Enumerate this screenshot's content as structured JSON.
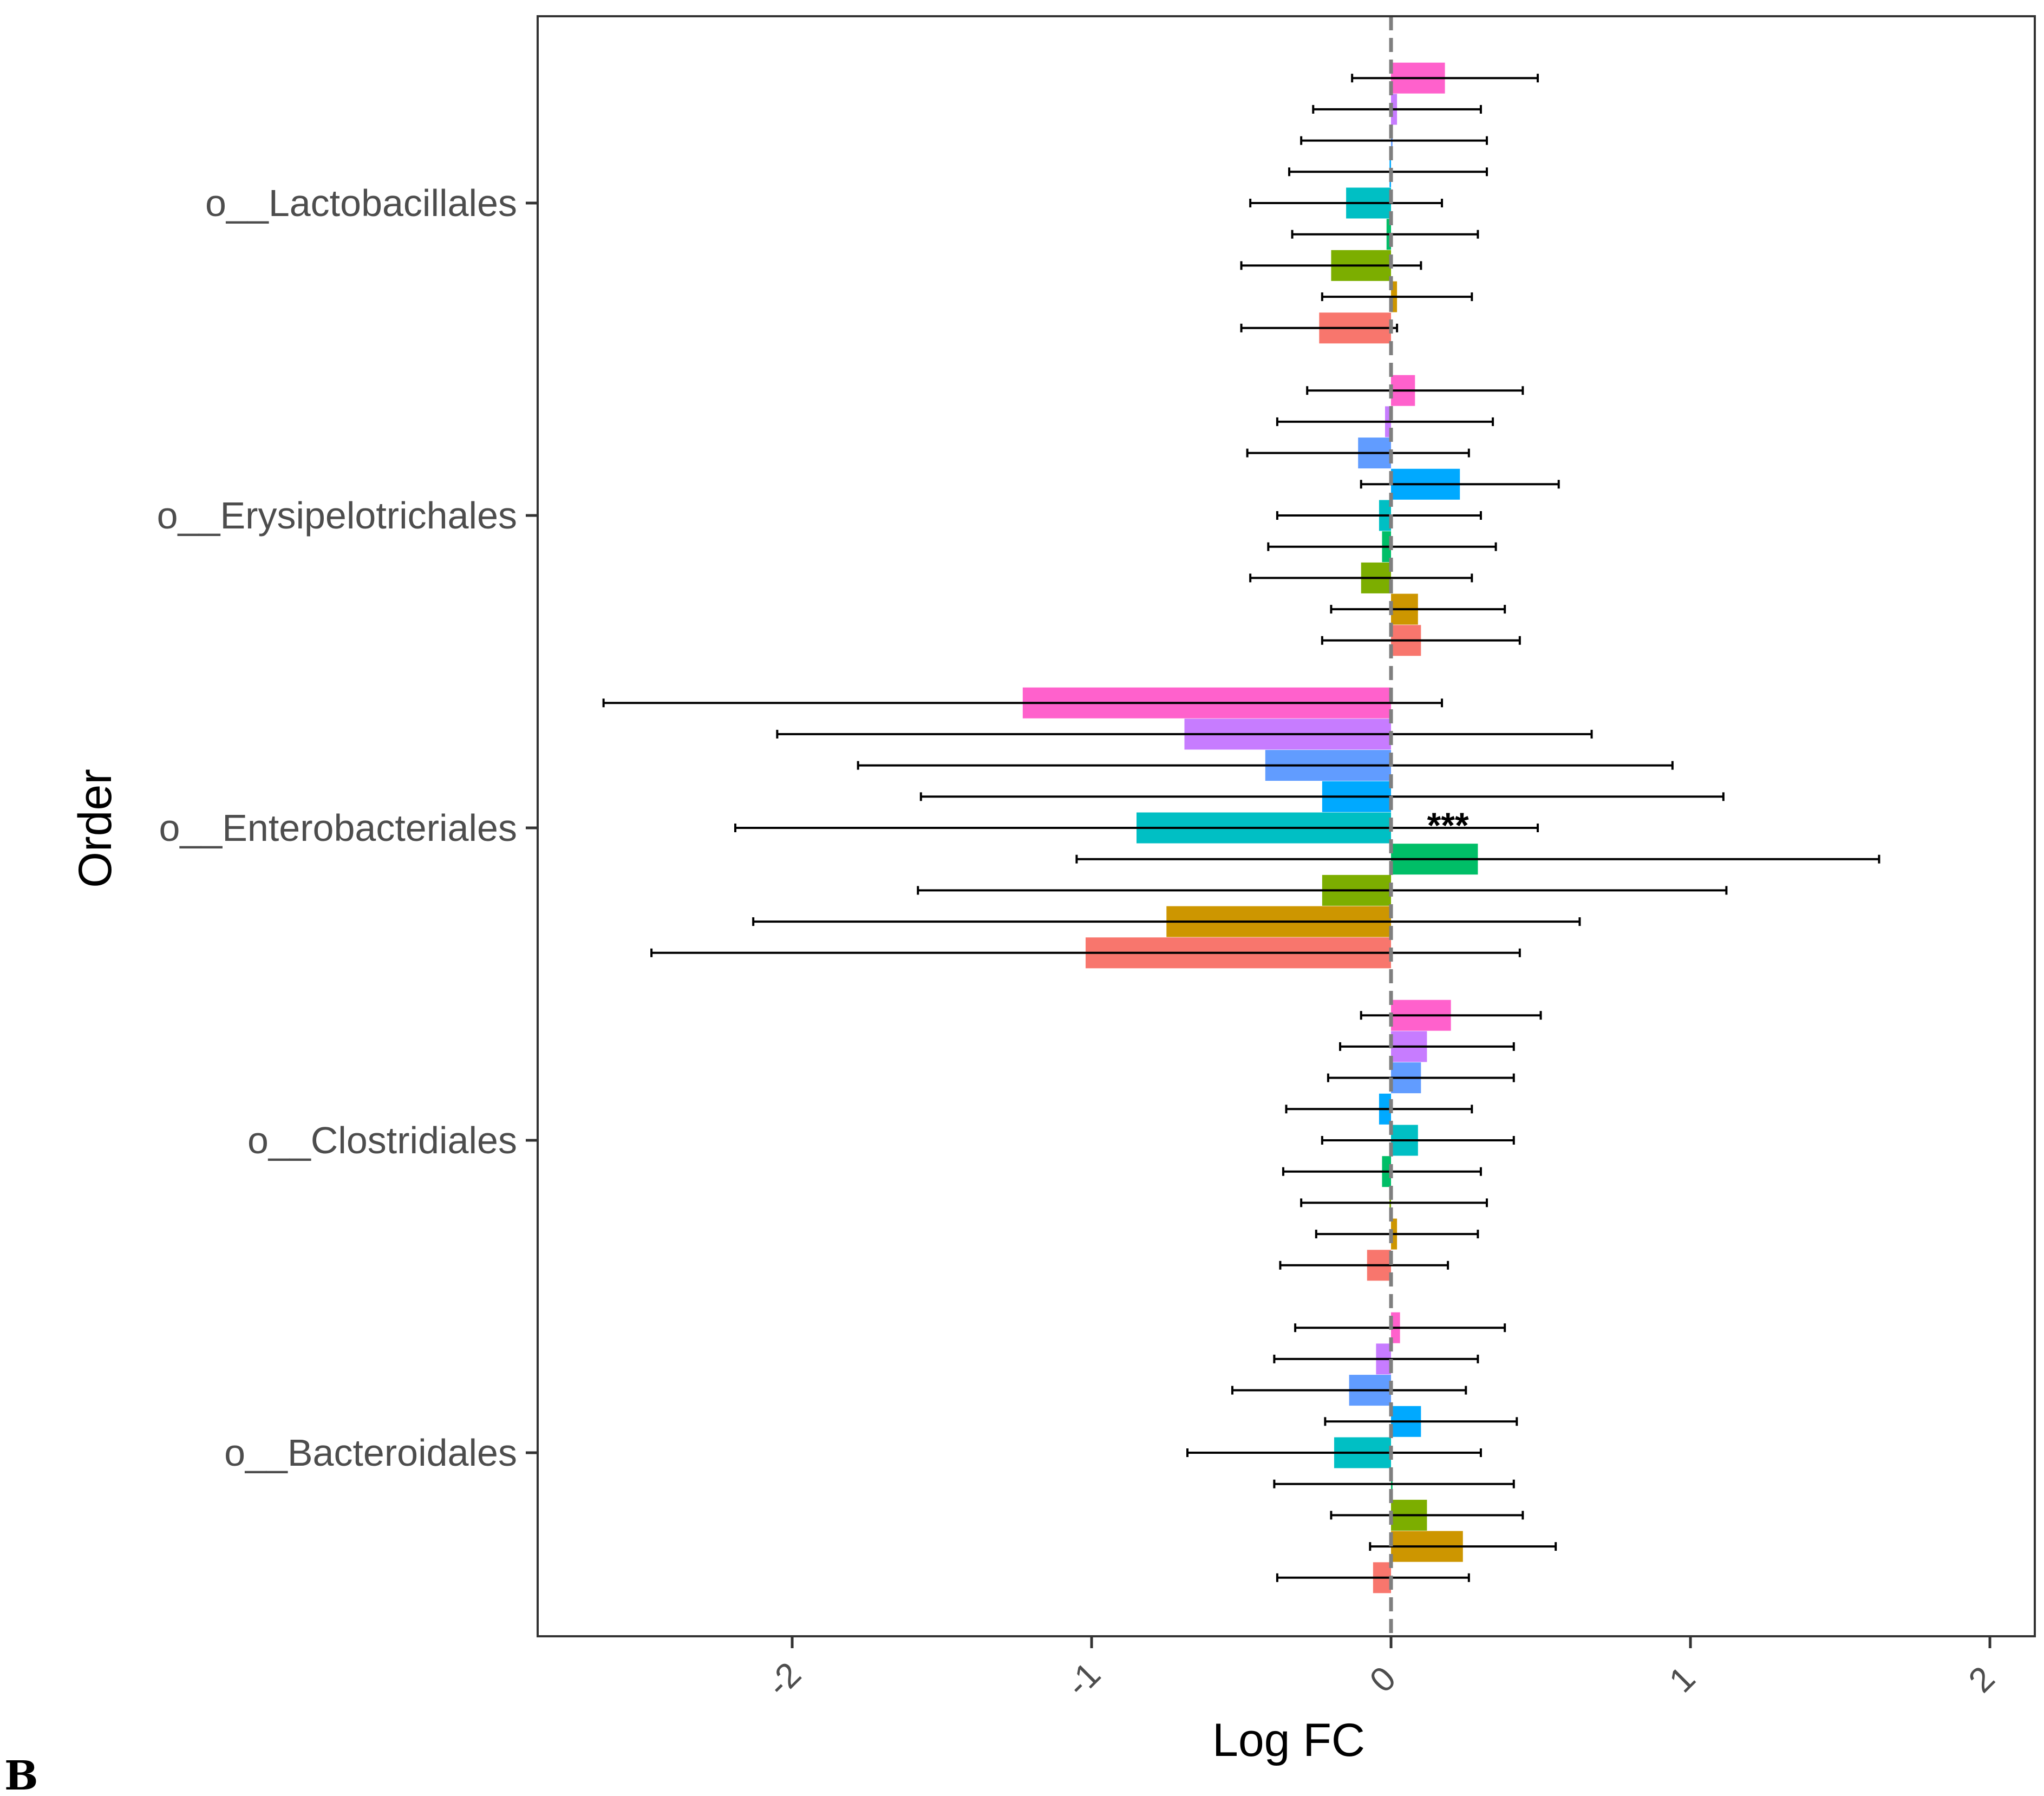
{
  "chart_data": {
    "type": "bar",
    "orientation": "horizontal",
    "title": "",
    "xlabel": "Log FC",
    "ylabel": "Order",
    "panel_label": "B",
    "xlim": [
      -2.85,
      2.15
    ],
    "xticks": [
      -2,
      -1,
      0,
      1,
      2
    ],
    "xtick_labels": [
      "-2",
      "-1",
      "0",
      "1",
      "2"
    ],
    "reference_line": 0,
    "grid": false,
    "legend": "none",
    "categories": [
      "o__Lactobacillales",
      "o__Erysipelotrichales",
      "o__Enterobacteriales",
      "o__Clostridiales",
      "o__Bacteroidales"
    ],
    "series_colors": [
      "#F8766D",
      "#CD9600",
      "#7CAE00",
      "#00BE67",
      "#00BFC4",
      "#00A9FF",
      "#619CFF",
      "#C77CFF",
      "#FF61CC"
    ],
    "groups": [
      {
        "category": "o__Lactobacillales",
        "bars": [
          {
            "value": -0.24,
            "ci": [
              -0.5,
              0.02
            ]
          },
          {
            "value": 0.02,
            "ci": [
              -0.23,
              0.27
            ]
          },
          {
            "value": -0.2,
            "ci": [
              -0.5,
              0.1
            ]
          },
          {
            "value": -0.015,
            "ci": [
              -0.33,
              0.29
            ]
          },
          {
            "value": -0.15,
            "ci": [
              -0.47,
              0.17
            ]
          },
          {
            "value": -0.005,
            "ci": [
              -0.34,
              0.32
            ]
          },
          {
            "value": 0.005,
            "ci": [
              -0.3,
              0.32
            ]
          },
          {
            "value": 0.02,
            "ci": [
              -0.26,
              0.3
            ]
          },
          {
            "value": 0.18,
            "ci": [
              -0.13,
              0.49
            ]
          }
        ]
      },
      {
        "category": "o__Erysipelotrichales",
        "bars": [
          {
            "value": 0.1,
            "ci": [
              -0.23,
              0.43
            ]
          },
          {
            "value": 0.09,
            "ci": [
              -0.2,
              0.38
            ]
          },
          {
            "value": -0.1,
            "ci": [
              -0.47,
              0.27
            ]
          },
          {
            "value": -0.03,
            "ci": [
              -0.41,
              0.35
            ]
          },
          {
            "value": -0.04,
            "ci": [
              -0.38,
              0.3
            ]
          },
          {
            "value": 0.23,
            "ci": [
              -0.1,
              0.56
            ]
          },
          {
            "value": -0.11,
            "ci": [
              -0.48,
              0.26
            ]
          },
          {
            "value": -0.02,
            "ci": [
              -0.38,
              0.34
            ]
          },
          {
            "value": 0.08,
            "ci": [
              -0.28,
              0.44
            ]
          }
        ]
      },
      {
        "category": "o__Enterobacteriales",
        "bars": [
          {
            "value": -1.02,
            "ci": [
              -2.47,
              0.43
            ]
          },
          {
            "value": -0.75,
            "ci": [
              -2.13,
              0.63
            ]
          },
          {
            "value": -0.23,
            "ci": [
              -1.58,
              1.12
            ]
          },
          {
            "value": 0.29,
            "ci": [
              -1.05,
              1.63
            ]
          },
          {
            "value": -0.85,
            "ci": [
              -2.19,
              0.49
            ]
          },
          {
            "value": -0.23,
            "ci": [
              -1.57,
              1.11
            ]
          },
          {
            "value": -0.42,
            "ci": [
              -1.78,
              0.94
            ]
          },
          {
            "value": -0.69,
            "ci": [
              -2.05,
              0.67
            ]
          },
          {
            "value": -1.23,
            "ci": [
              -2.63,
              0.17
            ]
          }
        ],
        "annotation": {
          "text": "***",
          "x": 0.19
        }
      },
      {
        "category": "o__Clostridiales",
        "bars": [
          {
            "value": -0.08,
            "ci": [
              -0.37,
              0.19
            ]
          },
          {
            "value": 0.02,
            "ci": [
              -0.25,
              0.29
            ]
          },
          {
            "value": -0.005,
            "ci": [
              -0.3,
              0.32
            ]
          },
          {
            "value": -0.03,
            "ci": [
              -0.36,
              0.3
            ]
          },
          {
            "value": 0.09,
            "ci": [
              -0.23,
              0.41
            ]
          },
          {
            "value": -0.04,
            "ci": [
              -0.35,
              0.27
            ]
          },
          {
            "value": 0.1,
            "ci": [
              -0.21,
              0.41
            ]
          },
          {
            "value": 0.12,
            "ci": [
              -0.17,
              0.41
            ]
          },
          {
            "value": 0.2,
            "ci": [
              -0.1,
              0.5
            ]
          }
        ]
      },
      {
        "category": "o__Bacteroidales",
        "bars": [
          {
            "value": -0.06,
            "ci": [
              -0.38,
              0.26
            ]
          },
          {
            "value": 0.24,
            "ci": [
              -0.07,
              0.55
            ]
          },
          {
            "value": 0.12,
            "ci": [
              -0.2,
              0.44
            ]
          },
          {
            "value": 0.005,
            "ci": [
              -0.39,
              0.41
            ]
          },
          {
            "value": -0.19,
            "ci": [
              -0.68,
              0.3
            ]
          },
          {
            "value": 0.1,
            "ci": [
              -0.22,
              0.42
            ]
          },
          {
            "value": -0.14,
            "ci": [
              -0.53,
              0.25
            ]
          },
          {
            "value": -0.05,
            "ci": [
              -0.39,
              0.29
            ]
          },
          {
            "value": 0.03,
            "ci": [
              -0.32,
              0.38
            ]
          }
        ]
      }
    ]
  }
}
